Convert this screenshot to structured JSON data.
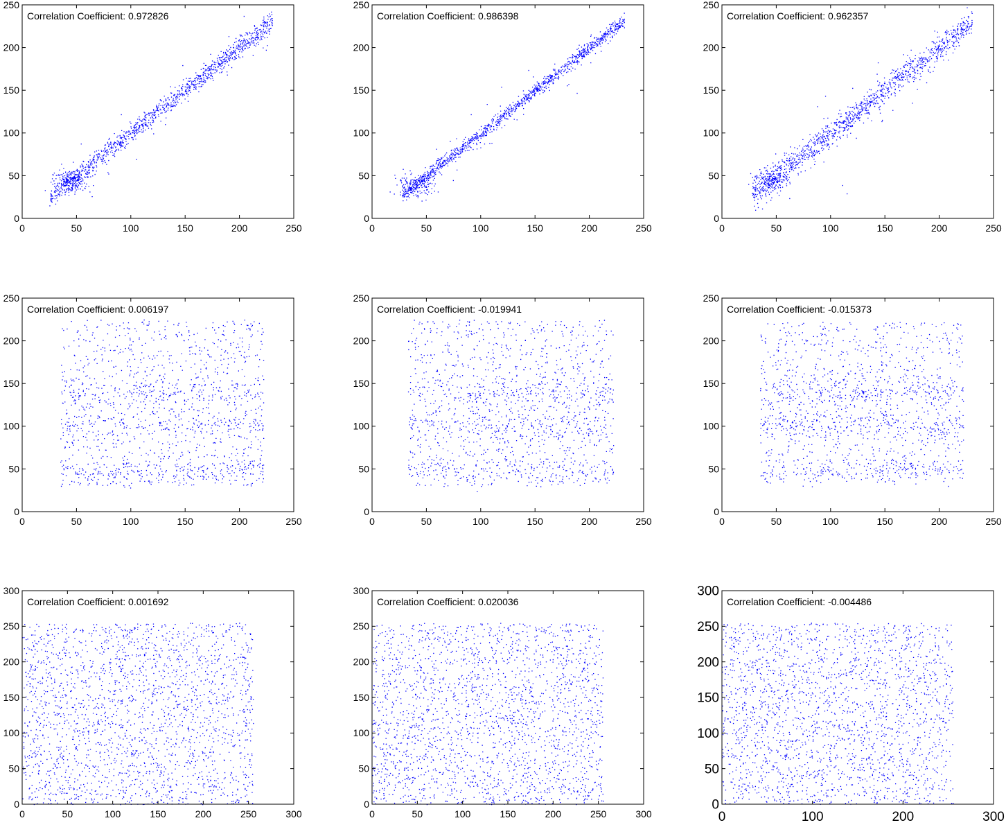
{
  "chart_data": [
    {
      "type": "scatter",
      "annotation": "Correlation Coefficient: 0.972826",
      "xlim": [
        0,
        250
      ],
      "ylim": [
        0,
        250
      ],
      "xticks": [
        0,
        50,
        100,
        150,
        200,
        250
      ],
      "yticks": [
        0,
        50,
        100,
        150,
        200,
        250
      ],
      "grid": false,
      "color": "#0000ff",
      "distribution": {
        "kind": "linear",
        "slope": 1.0,
        "intercept": 0,
        "x_range": [
          25,
          230
        ],
        "noise_sd": 6,
        "n_points": 1400,
        "cluster_x": 45,
        "cluster_y": 45
      }
    },
    {
      "type": "scatter",
      "annotation": "Correlation Coefficient: 0.986398",
      "xlim": [
        0,
        250
      ],
      "ylim": [
        0,
        250
      ],
      "xticks": [
        0,
        50,
        100,
        150,
        200,
        250
      ],
      "yticks": [
        0,
        50,
        100,
        150,
        200,
        250
      ],
      "grid": false,
      "color": "#0000ff",
      "distribution": {
        "kind": "linear",
        "slope": 1.0,
        "intercept": 0,
        "x_range": [
          28,
          232
        ],
        "noise_sd": 4,
        "n_points": 1400,
        "cluster_x": 40,
        "cluster_y": 38
      }
    },
    {
      "type": "scatter",
      "annotation": "Correlation Coefficient: 0.962357",
      "xlim": [
        0,
        250
      ],
      "ylim": [
        0,
        250
      ],
      "xticks": [
        0,
        50,
        100,
        150,
        200,
        250
      ],
      "yticks": [
        0,
        50,
        100,
        150,
        200,
        250
      ],
      "grid": false,
      "color": "#0000ff",
      "distribution": {
        "kind": "linear",
        "slope": 1.0,
        "intercept": 0,
        "x_range": [
          28,
          230
        ],
        "noise_sd": 8,
        "n_points": 1400,
        "cluster_x": 45,
        "cluster_y": 45
      }
    },
    {
      "type": "scatter",
      "annotation": "Correlation Coefficient: 0.006197",
      "xlim": [
        0,
        250
      ],
      "ylim": [
        0,
        250
      ],
      "xticks": [
        0,
        50,
        100,
        150,
        200,
        250
      ],
      "yticks": [
        0,
        50,
        100,
        150,
        200,
        250
      ],
      "grid": false,
      "color": "#0000ff",
      "distribution": {
        "kind": "uniform",
        "x_range": [
          35,
          222
        ],
        "y_range": [
          30,
          225
        ],
        "n_points": 1500,
        "y_bands": [
          48,
          100,
          140
        ]
      }
    },
    {
      "type": "scatter",
      "annotation": "Correlation Coefficient: -0.019941",
      "xlim": [
        0,
        250
      ],
      "ylim": [
        0,
        250
      ],
      "xticks": [
        0,
        50,
        100,
        150,
        200,
        250
      ],
      "yticks": [
        0,
        50,
        100,
        150,
        200,
        250
      ],
      "grid": false,
      "color": "#0000ff",
      "distribution": {
        "kind": "uniform",
        "x_range": [
          33,
          222
        ],
        "y_range": [
          30,
          225
        ],
        "n_points": 1500,
        "y_bands": [
          48,
          100,
          140
        ]
      }
    },
    {
      "type": "scatter",
      "annotation": "Correlation Coefficient: -0.015373",
      "xlim": [
        0,
        250
      ],
      "ylim": [
        0,
        250
      ],
      "xticks": [
        0,
        50,
        100,
        150,
        200,
        250
      ],
      "yticks": [
        0,
        50,
        100,
        150,
        200,
        250
      ],
      "grid": false,
      "color": "#0000ff",
      "distribution": {
        "kind": "uniform",
        "x_range": [
          35,
          222
        ],
        "y_range": [
          35,
          222
        ],
        "n_points": 1500,
        "y_bands": [
          48,
          100,
          140
        ]
      }
    },
    {
      "type": "scatter",
      "annotation": "Correlation Coefficient: 0.001692",
      "xlim": [
        0,
        300
      ],
      "ylim": [
        0,
        300
      ],
      "xticks": [
        0,
        50,
        100,
        150,
        200,
        250,
        300
      ],
      "yticks": [
        0,
        50,
        100,
        150,
        200,
        250,
        300
      ],
      "grid": false,
      "color": "#0000ff",
      "distribution": {
        "kind": "uniform",
        "x_range": [
          0,
          255
        ],
        "y_range": [
          0,
          255
        ],
        "n_points": 2200
      }
    },
    {
      "type": "scatter",
      "annotation": "Correlation Coefficient: 0.020036",
      "xlim": [
        0,
        300
      ],
      "ylim": [
        0,
        300
      ],
      "xticks": [
        0,
        50,
        100,
        150,
        200,
        250,
        300
      ],
      "yticks": [
        0,
        50,
        100,
        150,
        200,
        250,
        300
      ],
      "grid": false,
      "color": "#0000ff",
      "distribution": {
        "kind": "uniform",
        "x_range": [
          0,
          255
        ],
        "y_range": [
          0,
          255
        ],
        "n_points": 2200
      }
    },
    {
      "type": "scatter",
      "annotation": "Correlation Coefficient: -0.004486",
      "xlim": [
        0,
        300
      ],
      "ylim": [
        0,
        300
      ],
      "xticks": [
        0,
        100,
        200,
        300
      ],
      "yticks": [
        0,
        50,
        100,
        150,
        200,
        250,
        300
      ],
      "grid": false,
      "color": "#0000ff",
      "distribution": {
        "kind": "uniform",
        "x_range": [
          0,
          255
        ],
        "y_range": [
          0,
          255
        ],
        "n_points": 2200
      }
    }
  ]
}
